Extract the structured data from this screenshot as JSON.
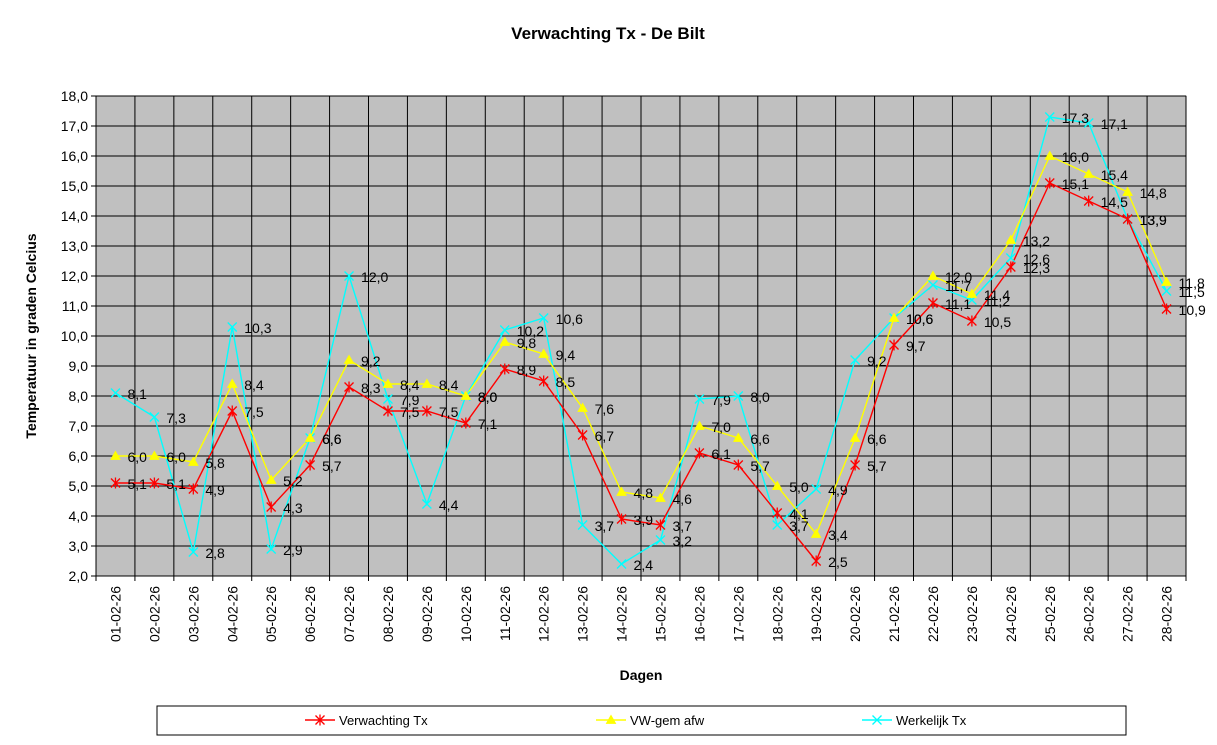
{
  "chart_data": {
    "type": "line",
    "title": "Verwachting Tx - De Bilt",
    "xlabel": "Dagen",
    "ylabel": "Temperatuur in graden Celcius",
    "ylim": [
      2.0,
      18.0
    ],
    "ytick_step": 1.0,
    "grid": true,
    "plot_background": "#c0c0c0",
    "legend_position": "bottom",
    "categories": [
      "01-02-26",
      "02-02-26",
      "03-02-26",
      "04-02-26",
      "05-02-26",
      "06-02-26",
      "07-02-26",
      "08-02-26",
      "09-02-26",
      "10-02-26",
      "11-02-26",
      "12-02-26",
      "13-02-26",
      "14-02-26",
      "15-02-26",
      "16-02-26",
      "17-02-26",
      "18-02-26",
      "19-02-26",
      "20-02-26",
      "21-02-26",
      "22-02-26",
      "23-02-26",
      "24-02-26",
      "25-02-26",
      "26-02-26",
      "27-02-26",
      "28-02-26"
    ],
    "series": [
      {
        "name": "Verwachting Tx",
        "color": "#ff0000",
        "marker": "star",
        "values": [
          5.1,
          5.1,
          4.9,
          7.5,
          4.3,
          5.7,
          8.3,
          7.5,
          7.5,
          7.1,
          8.9,
          8.5,
          6.7,
          3.9,
          3.7,
          6.1,
          5.7,
          4.1,
          2.5,
          5.7,
          9.7,
          11.1,
          10.5,
          12.3,
          15.1,
          14.5,
          13.9,
          10.9
        ]
      },
      {
        "name": "VW-gem afw",
        "color": "#ffff00",
        "marker": "triangle",
        "values": [
          6.0,
          6.0,
          5.8,
          8.4,
          5.2,
          6.6,
          9.2,
          8.4,
          8.4,
          8.0,
          9.8,
          9.4,
          7.6,
          4.8,
          4.6,
          7.0,
          6.6,
          5.0,
          3.4,
          6.6,
          10.6,
          12.0,
          11.4,
          13.2,
          16.0,
          15.4,
          14.8,
          11.8
        ]
      },
      {
        "name": "Werkelijk Tx",
        "color": "#00ffff",
        "marker": "x",
        "values": [
          8.1,
          7.3,
          2.8,
          10.3,
          2.9,
          6.6,
          12.0,
          7.9,
          4.4,
          8.0,
          10.2,
          10.6,
          3.7,
          2.4,
          3.2,
          7.9,
          8.0,
          3.7,
          4.9,
          9.2,
          10.6,
          11.7,
          11.2,
          12.6,
          17.3,
          17.1,
          13.9,
          11.5
        ]
      }
    ]
  }
}
